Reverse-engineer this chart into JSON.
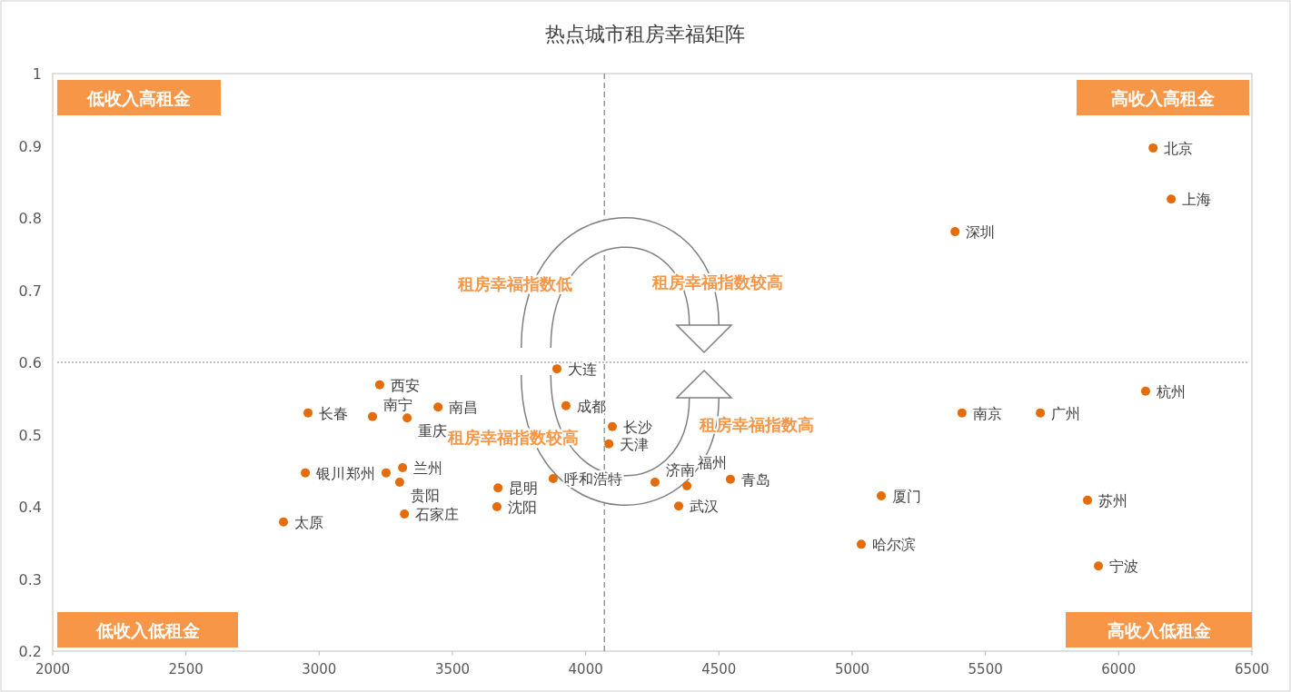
{
  "chart_data": {
    "type": "scatter",
    "title": "热点城市租房幸福矩阵",
    "series": [
      {
        "color": "#e46c0a",
        "x": [
          6129,
          6197,
          5386,
          6101,
          5412,
          5706,
          5883,
          5924,
          5109,
          5034,
          4543,
          4260,
          4349,
          4380,
          4100,
          4087,
          3892,
          3926,
          3878,
          3671,
          3667,
          3446,
          3330,
          3200,
          3227,
          2958,
          2948,
          3313,
          3251,
          3302,
          3320,
          2866
        ],
        "values": [
          0.897,
          0.826,
          0.781,
          0.56,
          0.53,
          0.53,
          0.409,
          0.318,
          0.415,
          0.348,
          0.438,
          0.434,
          0.401,
          0.429,
          0.511,
          0.487,
          0.591,
          0.54,
          0.439,
          0.426,
          0.4,
          0.538,
          0.523,
          0.525,
          0.569,
          0.53,
          0.447,
          0.454,
          0.447,
          0.434,
          0.39,
          0.379
        ]
      }
    ],
    "annotations": [
      "低收入高租金",
      "高收入高租金",
      "低收入低租金",
      "高收入低租金",
      "租房幸福指数低",
      "租房幸福指数较高",
      "租房幸福指数较高",
      "租房幸福指数高",
      {
        "text": "北京",
        "x": 6129,
        "y": 0.897
      },
      {
        "text": "上海",
        "x": 6197,
        "y": 0.826
      },
      {
        "text": "深圳",
        "x": 5386,
        "y": 0.781
      },
      {
        "text": "杭州",
        "x": 6101,
        "y": 0.56
      },
      {
        "text": "南京",
        "x": 5412,
        "y": 0.53
      },
      {
        "text": "广州",
        "x": 5706,
        "y": 0.53
      },
      {
        "text": "苏州",
        "x": 5883,
        "y": 0.409
      },
      {
        "text": "宁波",
        "x": 5924,
        "y": 0.318
      },
      {
        "text": "厦门",
        "x": 5109,
        "y": 0.415
      },
      {
        "text": "哈尔滨",
        "x": 5034,
        "y": 0.348
      },
      {
        "text": "青岛",
        "x": 4543,
        "y": 0.438
      },
      {
        "text": "济南",
        "x": 4260,
        "y": 0.434
      },
      {
        "text": "武汉",
        "x": 4349,
        "y": 0.401
      },
      {
        "text": "福州",
        "x": 4380,
        "y": 0.429
      },
      {
        "text": "长沙",
        "x": 4100,
        "y": 0.511
      },
      {
        "text": "天津",
        "x": 4087,
        "y": 0.487
      },
      {
        "text": "大连",
        "x": 3892,
        "y": 0.591
      },
      {
        "text": "成都",
        "x": 3926,
        "y": 0.54
      },
      {
        "text": "呼和浩特",
        "x": 3878,
        "y": 0.439
      },
      {
        "text": "昆明",
        "x": 3671,
        "y": 0.426
      },
      {
        "text": "沈阳",
        "x": 3667,
        "y": 0.4
      },
      {
        "text": "南昌",
        "x": 3446,
        "y": 0.538
      },
      {
        "text": "重庆",
        "x": 3330,
        "y": 0.523
      },
      {
        "text": "南宁",
        "x": 3200,
        "y": 0.525
      },
      {
        "text": "西安",
        "x": 3227,
        "y": 0.569
      },
      {
        "text": "长春",
        "x": 2958,
        "y": 0.53
      },
      {
        "text": "银川",
        "x": 2948,
        "y": 0.447
      },
      {
        "text": "兰州",
        "x": 3313,
        "y": 0.454
      },
      {
        "text": "郑州",
        "x": 3251,
        "y": 0.447
      },
      {
        "text": "贵阳",
        "x": 3302,
        "y": 0.434
      },
      {
        "text": "石家庄",
        "x": 3320,
        "y": 0.39
      },
      {
        "text": "太原",
        "x": 2866,
        "y": 0.379
      }
    ],
    "ref_lines": [
      {
        "axis": "x",
        "value": 4070,
        "line_style": "dashed",
        "color": "#808080"
      },
      {
        "axis": "y",
        "value": 0.6,
        "line_style": "dotted",
        "color": "#808080"
      }
    ],
    "xlim": [
      2000,
      6500
    ],
    "xticks": [
      2000,
      2500,
      3000,
      3500,
      4000,
      4500,
      5000,
      5500,
      6000,
      6500
    ],
    "ylim": [
      0.2,
      1
    ],
    "yticks": [
      0.2,
      0.3,
      0.4,
      0.5,
      0.6,
      0.7,
      0.8,
      0.9,
      1
    ],
    "marker": "circle",
    "grid": false
  }
}
